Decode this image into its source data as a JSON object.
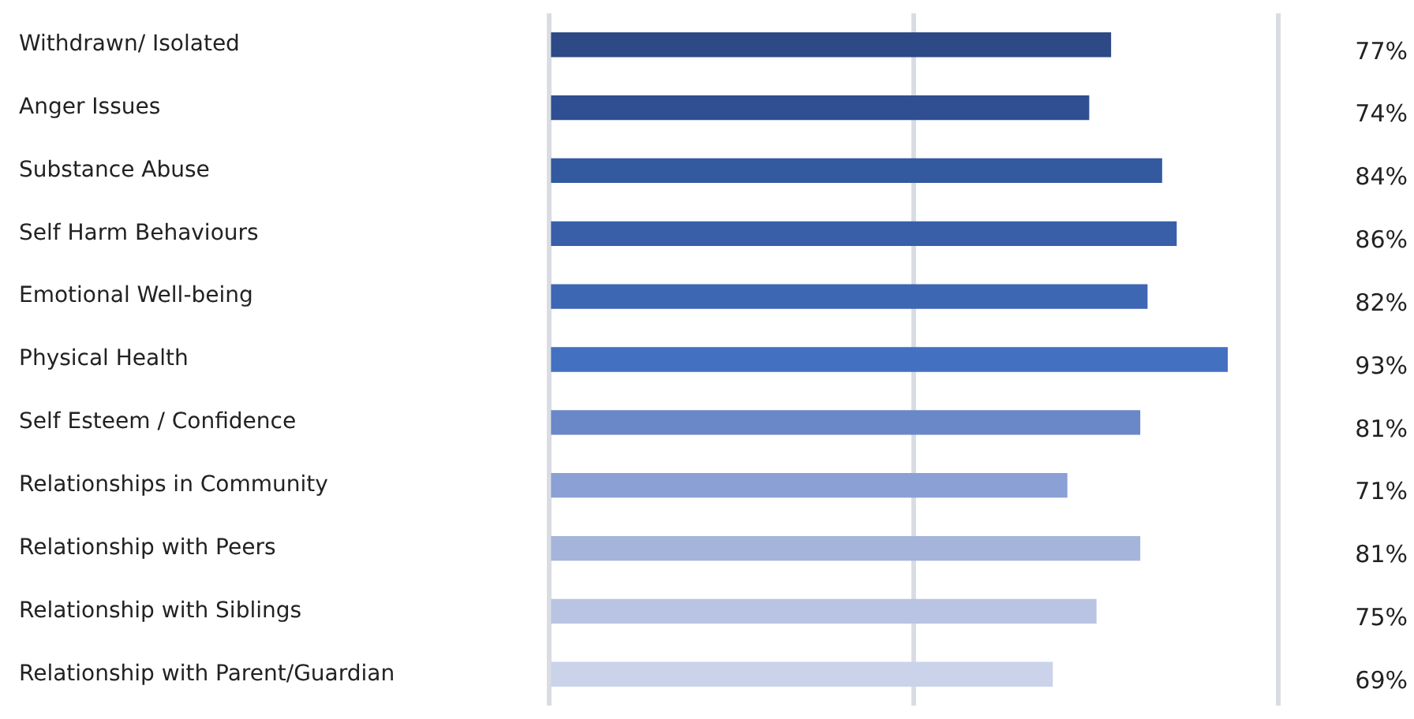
{
  "chart_data": {
    "type": "bar",
    "orientation": "horizontal",
    "categories": [
      "Withdrawn/ Isolated",
      "Anger Issues",
      "Substance Abuse",
      "Self Harm Behaviours",
      "Emotional Well-being",
      "Physical Health",
      "Self Esteem / Confidence",
      "Relationships in Community",
      "Relationship with Peers",
      "Relationship with Siblings",
      "Relationship with Parent/Guardian"
    ],
    "values": [
      77,
      74,
      84,
      86,
      82,
      93,
      81,
      71,
      81,
      75,
      69
    ],
    "colors": [
      "#2d4a86",
      "#2f4f92",
      "#33599f",
      "#385fa8",
      "#3d66b3",
      "#4370c0",
      "#6a87c8",
      "#8ba0d4",
      "#a5b4da",
      "#b9c4e3",
      "#cbd3ea"
    ],
    "value_labels": [
      "77%",
      "74%",
      "84%",
      "86%",
      "82%",
      "93%",
      "81%",
      "71%",
      "81%",
      "75%",
      "69%"
    ],
    "xlim": [
      0,
      100
    ],
    "xticks": [
      {
        "value": 0,
        "label": null
      },
      {
        "value": 50,
        "label": null
      },
      {
        "value": 100,
        "label": null
      }
    ],
    "grid": "x",
    "tick_labels": "y"
  }
}
